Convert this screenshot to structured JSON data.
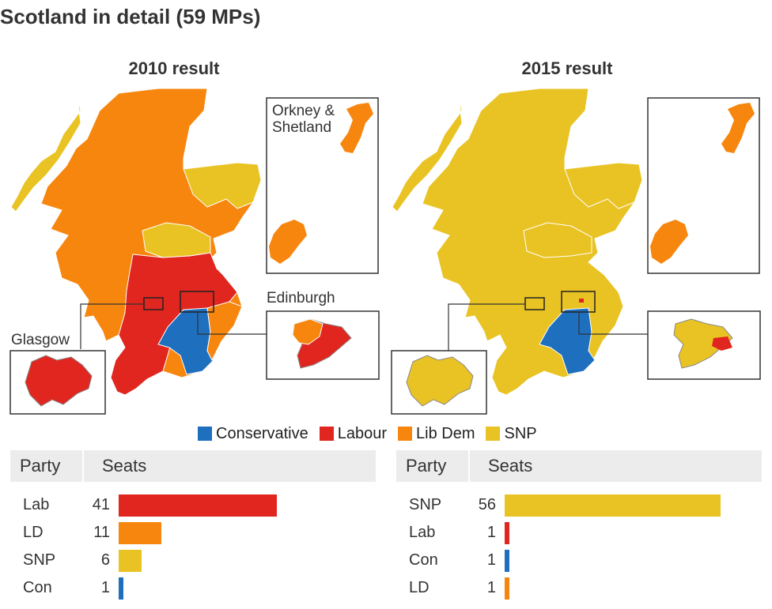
{
  "title": "Scotland in detail (59 MPs)",
  "maps": [
    {
      "title": "2010 result",
      "glasgow_label": "Glasgow",
      "edinburgh_label": "Edinburgh",
      "orkney_label_line1": "Orkney &",
      "orkney_label_line2": "Shetland"
    },
    {
      "title": "2015 result"
    }
  ],
  "legend": [
    {
      "label": "Conservative",
      "color": "#1f6fbf"
    },
    {
      "label": "Labour",
      "color": "#e0261f"
    },
    {
      "label": "Lib Dem",
      "color": "#f7860e"
    },
    {
      "label": "SNP",
      "color": "#e9c324"
    }
  ],
  "colors": {
    "conservative": "#1f6fbf",
    "labour": "#e0261f",
    "libdem": "#f7860e",
    "snp": "#e9c324"
  },
  "tables": [
    {
      "header": {
        "party": "Party",
        "seats": "Seats"
      },
      "rows": [
        {
          "party": "Lab",
          "seats": 41,
          "color": "#e0261f"
        },
        {
          "party": "LD",
          "seats": 11,
          "color": "#f7860e"
        },
        {
          "party": "SNP",
          "seats": 6,
          "color": "#e9c324"
        },
        {
          "party": "Con",
          "seats": 1,
          "color": "#1f6fbf"
        }
      ]
    },
    {
      "header": {
        "party": "Party",
        "seats": "Seats"
      },
      "rows": [
        {
          "party": "SNP",
          "seats": 56,
          "color": "#e9c324"
        },
        {
          "party": "Lab",
          "seats": 1,
          "color": "#e0261f"
        },
        {
          "party": "Con",
          "seats": 1,
          "color": "#1f6fbf"
        },
        {
          "party": "LD",
          "seats": 1,
          "color": "#f7860e"
        }
      ]
    }
  ]
}
